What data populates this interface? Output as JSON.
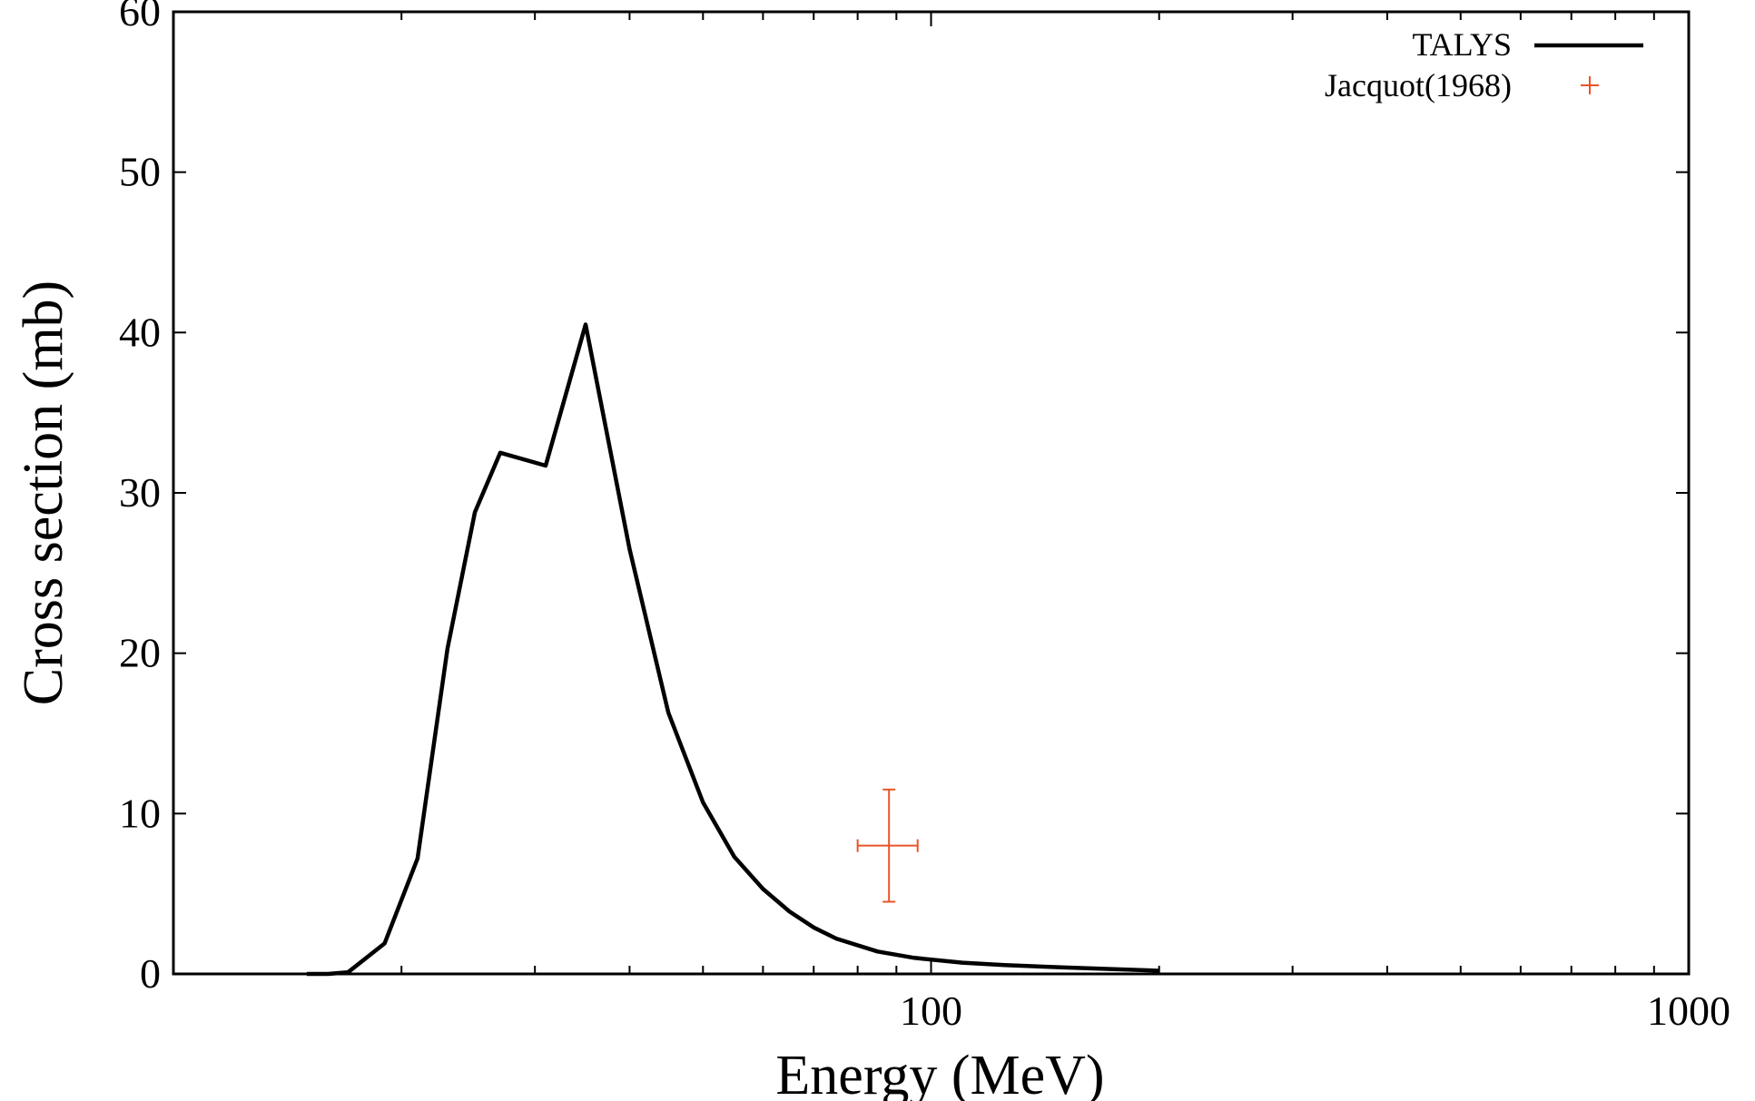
{
  "chart_data": {
    "type": "line",
    "title": "",
    "xlabel": "Energy (MeV)",
    "ylabel": "Cross section (mb)",
    "xscale": "log",
    "xlim": [
      10,
      1000
    ],
    "ylim": [
      0,
      60
    ],
    "x_ticks": [
      {
        "value": 100,
        "label": "100"
      },
      {
        "value": 1000,
        "label": "1000"
      }
    ],
    "y_ticks": [
      {
        "value": 0,
        "label": "0"
      },
      {
        "value": 10,
        "label": "10"
      },
      {
        "value": 20,
        "label": "20"
      },
      {
        "value": 30,
        "label": "30"
      },
      {
        "value": 40,
        "label": "40"
      },
      {
        "value": 50,
        "label": "50"
      },
      {
        "value": 60,
        "label": "60"
      }
    ],
    "grid": false,
    "legend_position": "top-right",
    "series": [
      {
        "name": "TALYS",
        "style": "line",
        "color": "#000000",
        "points": [
          [
            15,
            0.0
          ],
          [
            16,
            0.0
          ],
          [
            17,
            0.1
          ],
          [
            19,
            1.9
          ],
          [
            21,
            7.2
          ],
          [
            23,
            20.3
          ],
          [
            25,
            28.8
          ],
          [
            27,
            32.5
          ],
          [
            31,
            31.7
          ],
          [
            35,
            40.5
          ],
          [
            40,
            26.5
          ],
          [
            45,
            16.3
          ],
          [
            50,
            10.7
          ],
          [
            55,
            7.3
          ],
          [
            60,
            5.3
          ],
          [
            65,
            3.9
          ],
          [
            70,
            2.9
          ],
          [
            75,
            2.2
          ],
          [
            85,
            1.4
          ],
          [
            95,
            1.0
          ],
          [
            110,
            0.7
          ],
          [
            125,
            0.55
          ],
          [
            150,
            0.4
          ],
          [
            200,
            0.2
          ]
        ]
      },
      {
        "name": "Jacquot(1968)",
        "style": "errorbar",
        "color": "#e8552a",
        "points": [
          {
            "x": 88,
            "y": 8.0,
            "xerr": 8,
            "yerr": 3.5
          }
        ]
      }
    ]
  }
}
